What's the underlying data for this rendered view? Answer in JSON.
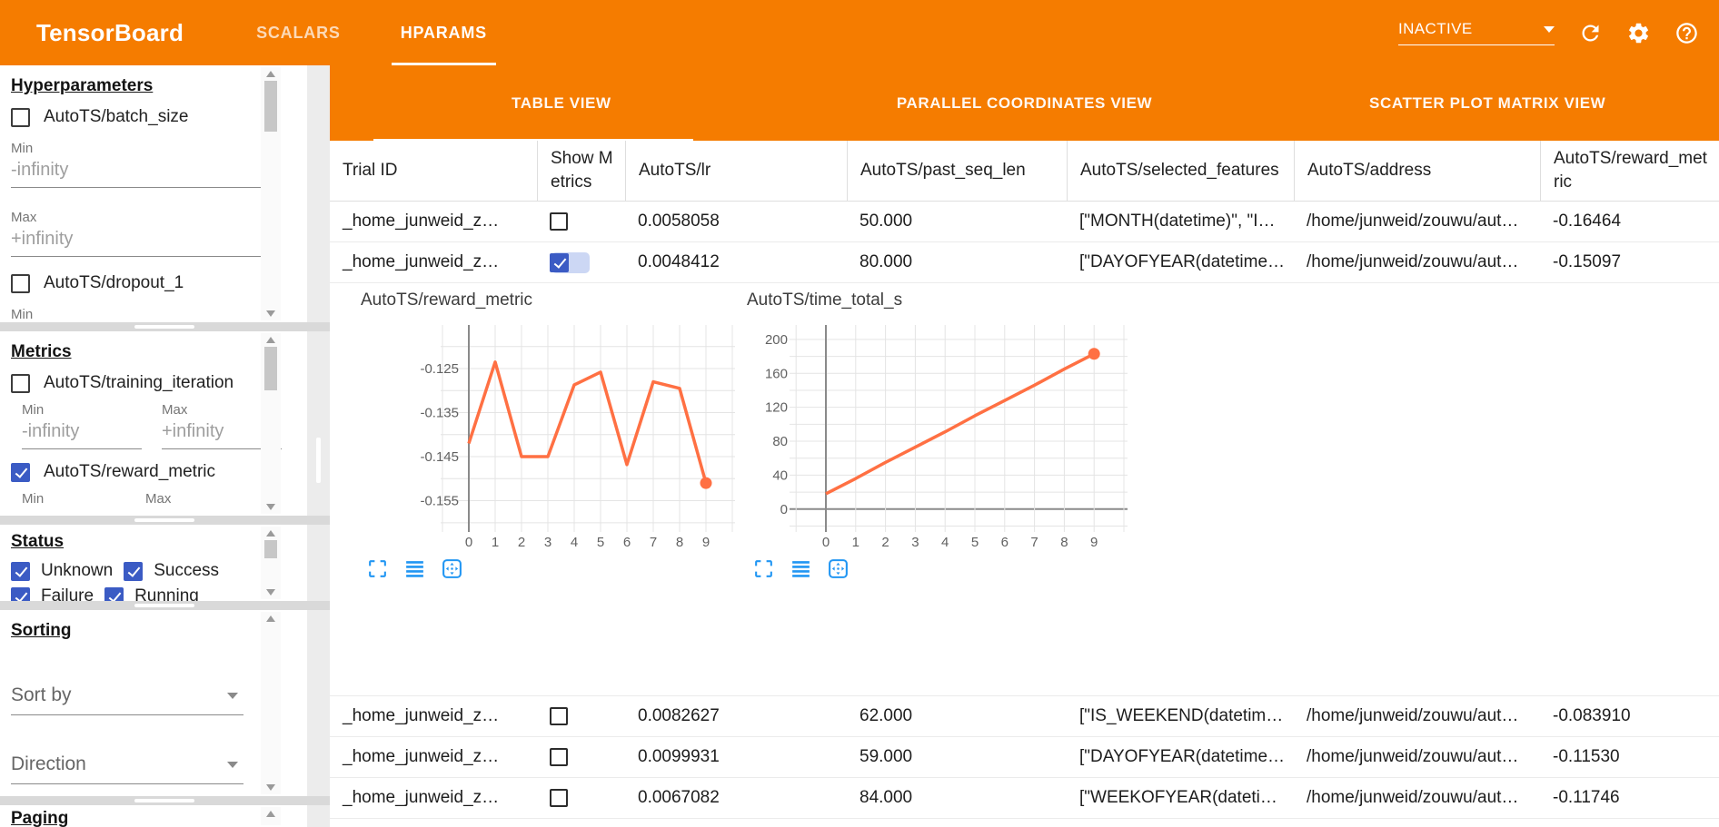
{
  "colors": {
    "header_orange": "#f57c00",
    "accent_blue": "#2196f3",
    "checkbox_blue": "#3b5bc4",
    "chart_line_orange": "#ff7043"
  },
  "header": {
    "title": "TensorBoard",
    "tabs": [
      {
        "label": "SCALARS",
        "active": false
      },
      {
        "label": "HPARAMS",
        "active": true
      }
    ],
    "run_selector": {
      "value": "INACTIVE"
    },
    "icons": [
      "chevron-down",
      "refresh",
      "settings-gear",
      "help"
    ]
  },
  "sidebar": {
    "hyperparameters": {
      "title": "Hyperparameters",
      "params": [
        {
          "label": "AutoTS/batch_size",
          "checked": false,
          "min_label": "Min",
          "min_value": "-infinity",
          "max_label": "Max",
          "max_value": "+infinity"
        },
        {
          "label": "AutoTS/dropout_1",
          "checked": false,
          "min_label": "Min"
        }
      ]
    },
    "metrics": {
      "title": "Metrics",
      "items": [
        {
          "label": "AutoTS/training_iteration",
          "checked": false,
          "min_label": "Min",
          "min_value": "-infinity",
          "max_label": "Max",
          "max_value": "+infinity"
        },
        {
          "label": "AutoTS/reward_metric",
          "checked": true,
          "min_label": "Min",
          "max_label": "Max"
        }
      ]
    },
    "status": {
      "title": "Status",
      "options": [
        {
          "label": "Unknown",
          "checked": true
        },
        {
          "label": "Success",
          "checked": true
        },
        {
          "label": "Failure",
          "checked": true
        },
        {
          "label": "Running",
          "checked": true
        }
      ]
    },
    "sorting": {
      "title": "Sorting",
      "sort_by_label": "Sort by",
      "direction_label": "Direction"
    },
    "paging": {
      "title": "Paging"
    }
  },
  "main": {
    "view_tabs": [
      {
        "label": "TABLE VIEW",
        "active": true
      },
      {
        "label": "PARALLEL COORDINATES VIEW",
        "active": false
      },
      {
        "label": "SCATTER PLOT MATRIX VIEW",
        "active": false
      }
    ],
    "table": {
      "columns": [
        "Trial ID",
        "Show Metrics",
        "AutoTS/lr",
        "AutoTS/past_seq_len",
        "AutoTS/selected_features",
        "AutoTS/address",
        "AutoTS/reward_metric"
      ],
      "rows_above_detail": [
        {
          "trial_id": "_home_junweid_z…",
          "show_metrics": false,
          "cells": [
            "0.0058058",
            "50.000",
            "[\"MONTH(datetime)\", \"I…",
            "/home/junweid/zouwu/aut…",
            "-0.16464"
          ]
        },
        {
          "trial_id": "_home_junweid_z…",
          "show_metrics": true,
          "cells": [
            "0.0048412",
            "80.000",
            "[\"DAYOFYEAR(datetime…",
            "/home/junweid/zouwu/aut…",
            "-0.15097"
          ]
        }
      ],
      "rows_below_detail": [
        {
          "trial_id": "_home_junweid_z…",
          "show_metrics": false,
          "cells": [
            "0.0082627",
            "62.000",
            "[\"IS_WEEKEND(datetim…",
            "/home/junweid/zouwu/aut…",
            "-0.083910"
          ]
        },
        {
          "trial_id": "_home_junweid_z…",
          "show_metrics": false,
          "cells": [
            "0.0099931",
            "59.000",
            "[\"DAYOFYEAR(datetime…",
            "/home/junweid/zouwu/aut…",
            "-0.11530"
          ]
        },
        {
          "trial_id": "_home_junweid_z…",
          "show_metrics": false,
          "cells": [
            "0.0067082",
            "84.000",
            "[\"WEEKOFYEAR(dateti…",
            "/home/junweid/zouwu/aut…",
            "-0.11746"
          ]
        }
      ]
    },
    "chart_tool_icons": [
      "fullscreen",
      "rows-list",
      "pan"
    ]
  },
  "chart_data": [
    {
      "type": "line",
      "title": "AutoTS/reward_metric",
      "x": [
        0,
        1,
        2,
        3,
        4,
        5,
        6,
        7,
        8,
        9
      ],
      "values": [
        -0.142,
        -0.1235,
        -0.145,
        -0.145,
        -0.1287,
        -0.1258,
        -0.1468,
        -0.128,
        -0.1295,
        -0.151
      ],
      "ylim": [
        -0.1621,
        -0.1151
      ],
      "grid_step": 0.005,
      "y_tick_labels": [
        {
          "v": -0.125,
          "label": "-0.125"
        },
        {
          "v": -0.135,
          "label": "-0.135"
        },
        {
          "v": -0.145,
          "label": "-0.145"
        },
        {
          "v": -0.155,
          "label": "-0.155"
        }
      ],
      "x_tick_labels": [
        "0",
        "1",
        "2",
        "3",
        "4",
        "5",
        "6",
        "7",
        "8",
        "9"
      ],
      "color": "#ff7043",
      "zero_line": false,
      "end_marker": true,
      "grid": true,
      "legend": null
    },
    {
      "type": "line",
      "title": "AutoTS/time_total_s",
      "x": [
        0,
        1,
        2,
        3,
        4,
        5,
        6,
        7,
        8,
        9
      ],
      "values": [
        18,
        36,
        55,
        73,
        91,
        110,
        128,
        146,
        165,
        183
      ],
      "ylim": [
        -27,
        217
      ],
      "grid_step": 20,
      "y_tick_labels": [
        {
          "v": 0,
          "label": "0"
        },
        {
          "v": 40,
          "label": "40"
        },
        {
          "v": 80,
          "label": "80"
        },
        {
          "v": 120,
          "label": "120"
        },
        {
          "v": 160,
          "label": "160"
        },
        {
          "v": 200,
          "label": "200"
        }
      ],
      "x_tick_labels": [
        "0",
        "1",
        "2",
        "3",
        "4",
        "5",
        "6",
        "7",
        "8",
        "9"
      ],
      "color": "#ff7043",
      "zero_line": true,
      "end_marker": true,
      "grid": true,
      "legend": null
    }
  ]
}
